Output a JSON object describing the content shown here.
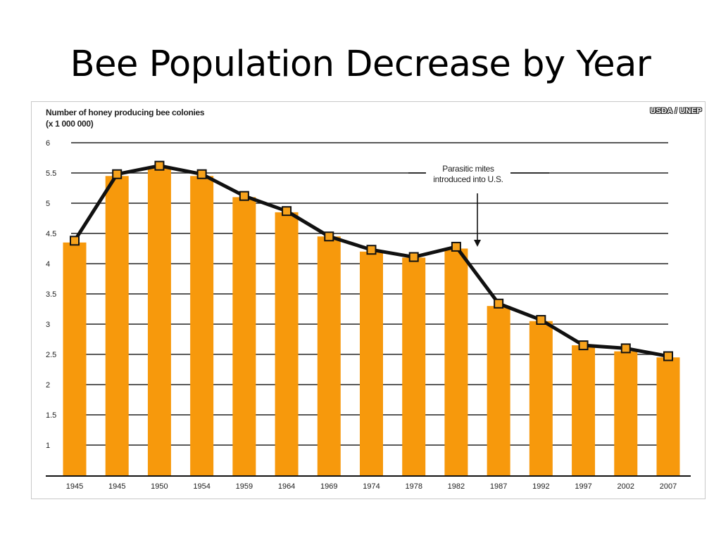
{
  "slide": {
    "title": "Bee Population Decrease by Year"
  },
  "colors": {
    "bar": "#f7990c",
    "line": "#111111",
    "marker_fill": "#f7a21b",
    "grid": "#222222"
  },
  "chart_data": {
    "type": "bar",
    "ylabel_line1": "Number of honey producing bee colonies",
    "ylabel_line2": "(x 1 000 000)",
    "source": "USDA / UNEP",
    "annotation_line1": "Parasitic mites",
    "annotation_line2": "introduced into U.S.",
    "annotation_year": "1982",
    "categories": [
      "1945",
      "1945",
      "1950",
      "1954",
      "1959",
      "1964",
      "1969",
      "1974",
      "1978",
      "1982",
      "1987",
      "1992",
      "1997",
      "2002",
      "2007"
    ],
    "series": [
      {
        "type": "bar",
        "values": [
          4.35,
          5.45,
          5.6,
          5.45,
          5.1,
          4.85,
          4.45,
          4.2,
          4.1,
          4.25,
          3.3,
          3.05,
          2.65,
          2.55,
          2.45
        ]
      },
      {
        "type": "line",
        "values": [
          4.38,
          5.48,
          5.62,
          5.48,
          5.12,
          4.87,
          4.45,
          4.23,
          4.11,
          4.28,
          3.34,
          3.07,
          2.65,
          2.6,
          2.47
        ]
      }
    ],
    "yticks": [
      "6",
      "5.5",
      "5",
      "4.5",
      "4",
      "3.5",
      "3",
      "2.5",
      "2",
      "1.5",
      "1"
    ],
    "ylim": [
      0.5,
      6
    ],
    "grid": true,
    "legend": "none"
  }
}
